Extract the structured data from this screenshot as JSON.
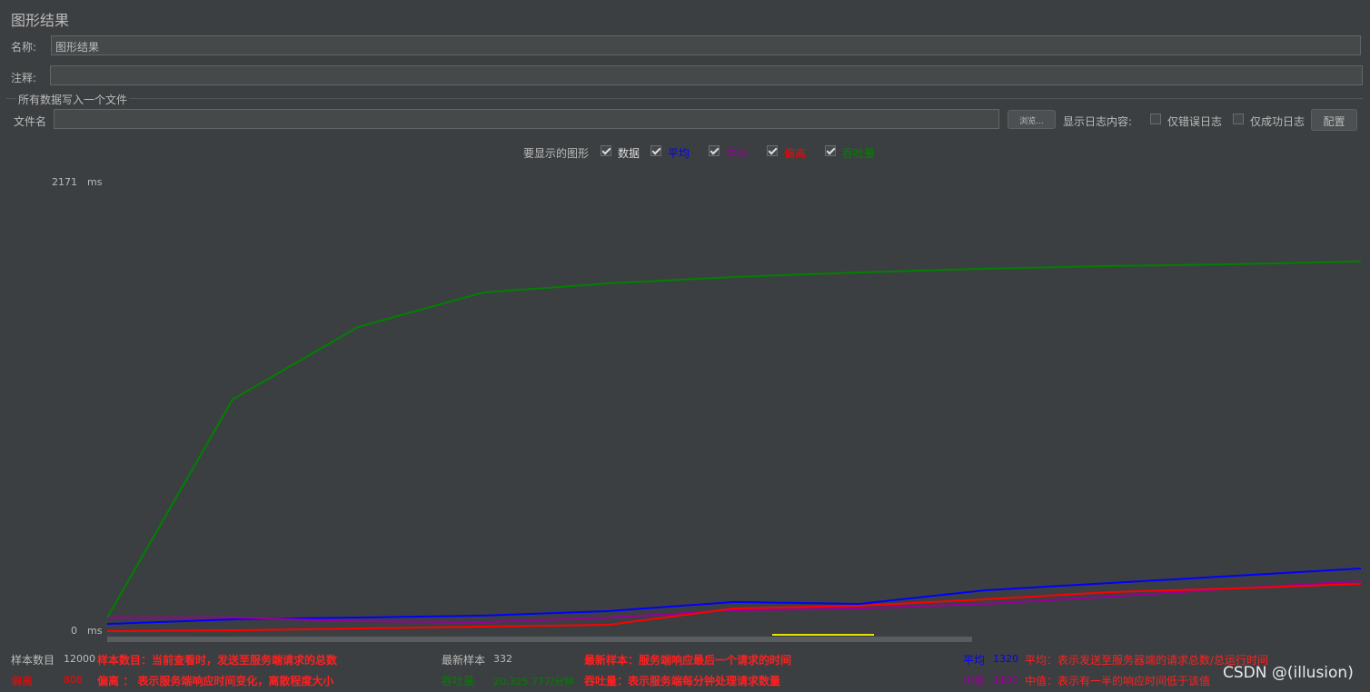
{
  "window_title": "图形结果",
  "name_label": "名称:",
  "name_value": "图形结果",
  "comment_label": "注释:",
  "file_section": "所有数据写入一个文件",
  "file_label": "文件名",
  "browse_button": "浏览...",
  "log_label": "显示日志内容:",
  "errors_only": "仅错误日志",
  "success_only": "仅成功日志",
  "configure_button": "配置",
  "graphs_label": "要显示的图形",
  "data_label": "数据",
  "chart_data": {
    "type": "line",
    "ylim": [
      0,
      2171
    ],
    "yticks": [
      0,
      2171
    ],
    "y_unit": "ms",
    "series": [
      {
        "name": "平均",
        "color": "#0000ff",
        "values": [
          35,
          57,
          66,
          75,
          97,
          141,
          132,
          198,
          233,
          268,
          303
        ]
      },
      {
        "name": "中值",
        "color": "#990099",
        "values": [
          66,
          66,
          48,
          44,
          66,
          101,
          110,
          132,
          167,
          207,
          242
        ]
      },
      {
        "name": "偏离",
        "color": "#ff0000",
        "values": [
          0,
          4,
          13,
          22,
          31,
          110,
          123,
          154,
          189,
          207,
          229
        ]
      },
      {
        "name": "吞吐量",
        "color": "#008000",
        "values": [
          66,
          1121,
          1472,
          1639,
          1683,
          1714,
          1736,
          1754,
          1767,
          1776,
          1789
        ]
      }
    ]
  },
  "stats": [
    {
      "label": "样本数目",
      "value": 12000,
      "note": "样本数目：当前查看时，发送至服务端请求的总数"
    },
    {
      "label": "偏离",
      "value": 806,
      "note": "偏离 ： 表示服务端响应时间变化，离散程度大小"
    },
    {
      "label": "最新样本",
      "value": 332,
      "note": "最新样本：服务端响应最后一个请求的时间"
    },
    {
      "label": "吞吐量",
      "value": "20,325.777/分钟",
      "note": "吞吐量：表示服务端每分钟处理请求数量"
    },
    {
      "label": "平均",
      "value": 1320,
      "note": "平均：表示发送至服务器端的请求总数/总运行时间"
    },
    {
      "label": "中值",
      "value": 1100,
      "note": "中值：表示有一半的响应时间低于该值"
    }
  ],
  "watermark": "CSDN @(illusion)"
}
